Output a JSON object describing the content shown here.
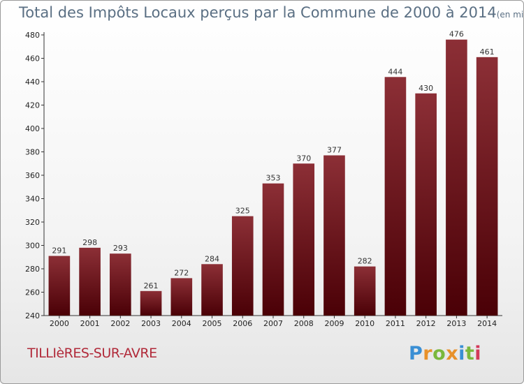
{
  "title": "Total des Impôts Locaux perçus par la Commune de 2000 à 2014",
  "unit_note": "(en milliers d'€)",
  "commune": "TILLIèRES-SUR-AVRE",
  "logo": {
    "letters": [
      "P",
      "r",
      "o",
      "x",
      "i",
      "t",
      "i"
    ],
    "colors": [
      "#3a8fd4",
      "#e8912a",
      "#7ab83c",
      "#e8912a",
      "#3a8fd4",
      "#7ab83c",
      "#d43a5a"
    ]
  },
  "colors": {
    "bar_dark": "#4a0006",
    "bar_light": "#8c2f36",
    "axis": "#333333",
    "grid": "#dddddd"
  },
  "chart_data": {
    "type": "bar",
    "title": "Total des Impôts Locaux perçus par la Commune de 2000 à 2014",
    "ylabel": "",
    "xlabel": "",
    "categories": [
      "2000",
      "2001",
      "2002",
      "2003",
      "2004",
      "2005",
      "2006",
      "2007",
      "2008",
      "2009",
      "2010",
      "2011",
      "2012",
      "2013",
      "2014"
    ],
    "values": [
      291,
      298,
      293,
      261,
      272,
      284,
      325,
      353,
      370,
      377,
      282,
      444,
      430,
      476,
      461
    ],
    "ylim": [
      240,
      480
    ],
    "yticks": [
      240,
      260,
      280,
      300,
      320,
      340,
      360,
      380,
      400,
      420,
      440,
      460,
      480
    ],
    "grid": false,
    "legend": "none"
  }
}
